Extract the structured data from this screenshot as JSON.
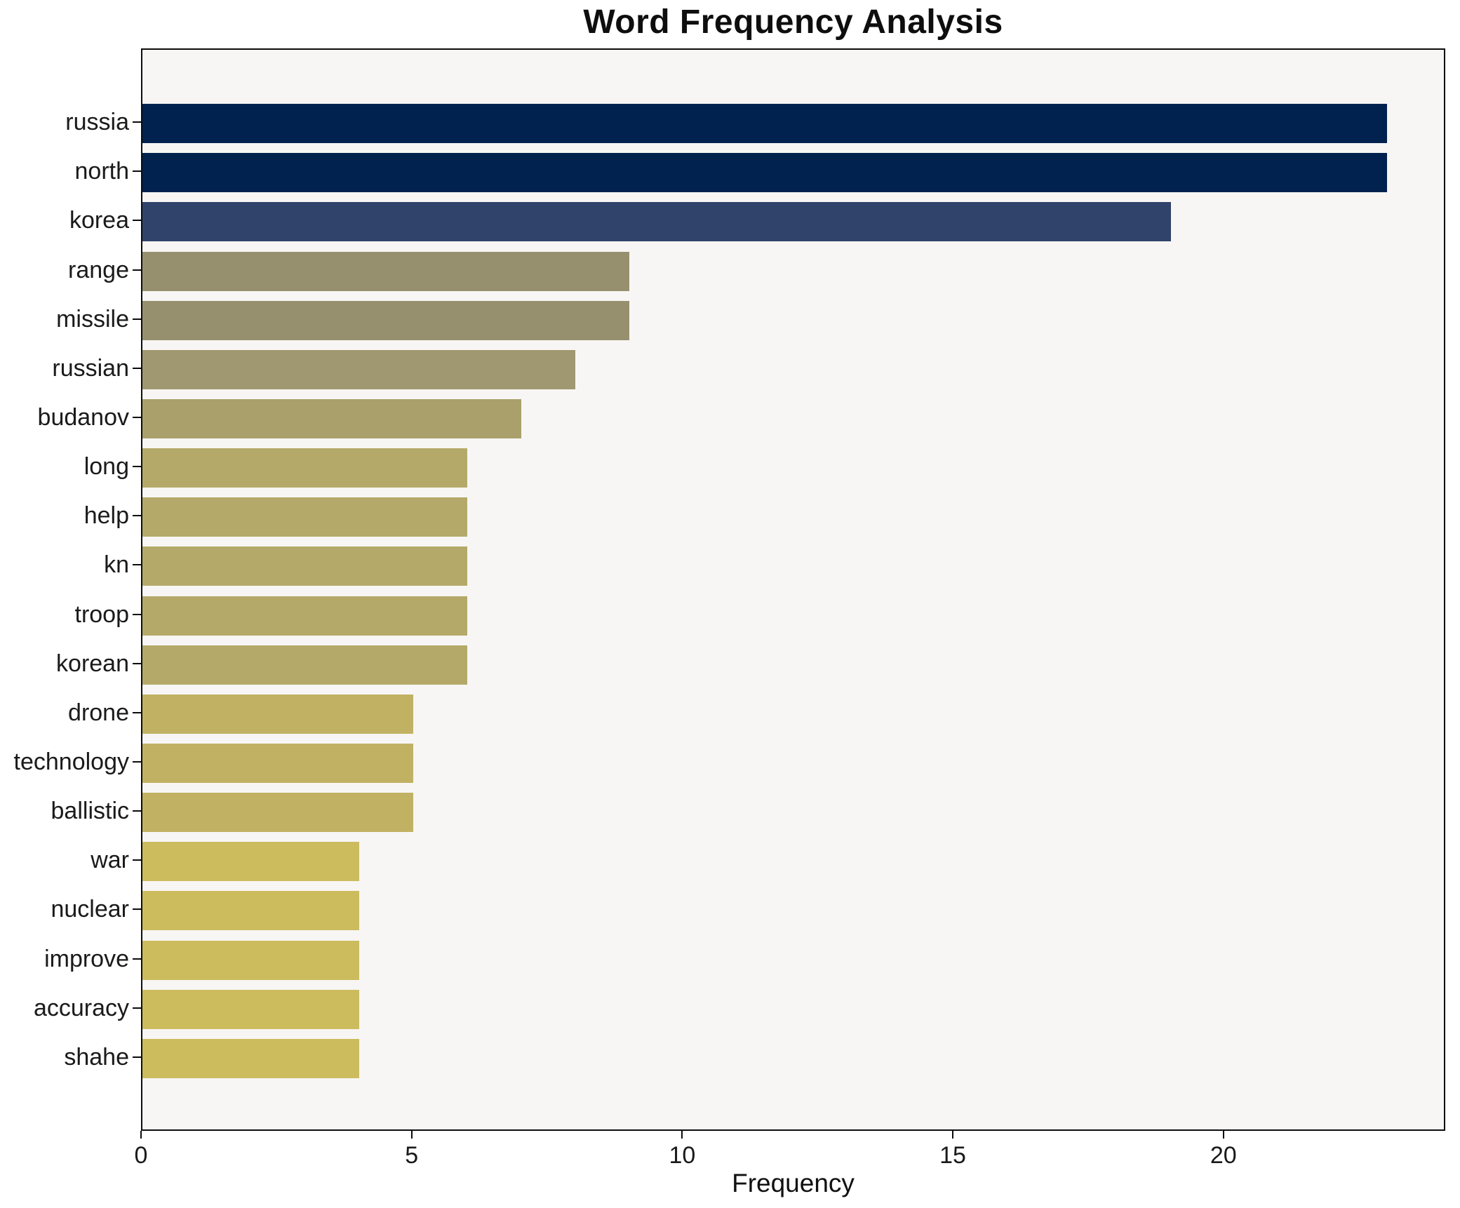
{
  "title": "Word Frequency Analysis",
  "axis": {
    "xlabel": "Frequency"
  },
  "chart_data": {
    "type": "bar",
    "orientation": "horizontal",
    "title": "Word Frequency Analysis",
    "xlabel": "Frequency",
    "ylabel": "",
    "categories": [
      "russia",
      "north",
      "korea",
      "range",
      "missile",
      "russian",
      "budanov",
      "long",
      "help",
      "kn",
      "troop",
      "korean",
      "drone",
      "technology",
      "ballistic",
      "war",
      "nuclear",
      "improve",
      "accuracy",
      "shahe"
    ],
    "values": [
      23,
      23,
      19,
      9,
      9,
      8,
      7,
      6,
      6,
      6,
      6,
      6,
      5,
      5,
      5,
      4,
      4,
      4,
      4,
      4
    ],
    "bar_colors": [
      "#01224e",
      "#01224e",
      "#2f436b",
      "#97906f",
      "#97906f",
      "#9f9870",
      "#a9a06c",
      "#b4a969",
      "#b4a969",
      "#b4a969",
      "#b4a969",
      "#b4a969",
      "#c1b263",
      "#c1b263",
      "#c1b263",
      "#ccbc5e",
      "#ccbc5e",
      "#ccbc5e",
      "#ccbc5e",
      "#ccbc5e"
    ],
    "xticks": [
      0,
      5,
      10,
      15,
      20
    ],
    "xlim": [
      0,
      24.1
    ],
    "grid": false,
    "legend": null,
    "colors": {
      "plot_background": "#f7f6f4",
      "figure_background": "#ffffff",
      "spine": "#0c0c0c",
      "text": "#1a1a1a"
    }
  }
}
